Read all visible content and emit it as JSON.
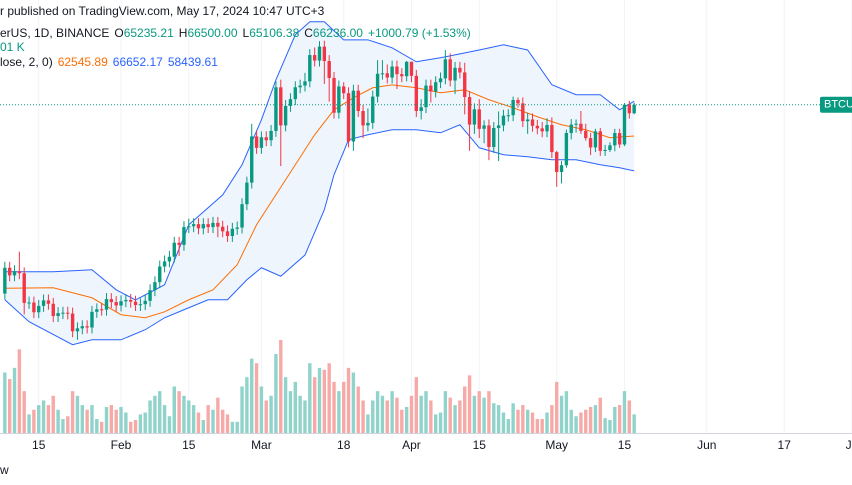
{
  "header": {
    "publish": "r published on TradingView.com, May 17, 2024 10:47 UTC+3",
    "symbol": "erUS, 1D, BINANCE",
    "ohlc": [
      {
        "k": "O",
        "v": "65235.21"
      },
      {
        "k": "H",
        "v": "66500.00"
      },
      {
        "k": "L",
        "v": "65106.38"
      },
      {
        "k": "C",
        "v": "66236.00"
      }
    ],
    "change": "+1000.79 (+1.53%)",
    "volume": "01 K",
    "bb": "lose, 2, 0)",
    "bb_values": [
      "62545.89",
      "66652.17",
      "58439.61"
    ]
  },
  "footer": "w",
  "chart_data": {
    "type": "candlestick",
    "price_label": "BTCUS",
    "up_color": "#089981",
    "down_color": "#f23645",
    "volume_up_color": "#8fd3cb",
    "volume_down_color": "#f7a9a7",
    "grid": true,
    "xlim": [
      -1,
      175
    ],
    "ylim": [
      27500,
      78600
    ],
    "volume_ylim": [
      0,
      100
    ],
    "xticks": [
      {
        "value": 7,
        "label": "15"
      },
      {
        "value": 24,
        "label": "Feb"
      },
      {
        "value": 38,
        "label": "15"
      },
      {
        "value": 53,
        "label": "Mar"
      },
      {
        "value": 70,
        "label": "18"
      },
      {
        "value": 84,
        "label": "Apr"
      },
      {
        "value": 98,
        "label": "15"
      },
      {
        "value": 114,
        "label": "May"
      },
      {
        "value": 128,
        "label": "15"
      },
      {
        "value": 145,
        "label": "Jun"
      },
      {
        "value": 161,
        "label": "17"
      },
      {
        "value": 175,
        "label": "Ju"
      }
    ],
    "open": [
      43950,
      47000,
      46100,
      46600,
      46350,
      42850,
      42900,
      41750,
      42500,
      43150,
      42750,
      41300,
      41650,
      41700,
      41600,
      39500,
      39850,
      40100,
      39950,
      41800,
      42100,
      42050,
      43300,
      42950,
      42550,
      43050,
      43200,
      43000,
      42600,
      42700,
      43100,
      44350,
      45300,
      47150,
      47750,
      48300,
      49950,
      49700,
      51800,
      51900,
      52150,
      51650,
      52150,
      51800,
      52300,
      51850,
      51300,
      50750,
      51600,
      51750,
      54500,
      57050,
      62500,
      61150,
      62400,
      62050,
      63150,
      68300,
      63800,
      66100,
      66900,
      68300,
      68500,
      69000,
      72100,
      71450,
      73100,
      71400,
      69400,
      65300,
      68400,
      67600,
      61900,
      67900,
      65500,
      63800,
      64100,
      67200,
      69900,
      69950,
      69450,
      70750,
      69850,
      69600,
      71300,
      69650,
      65500,
      65950,
      68500,
      67800,
      68900,
      69350,
      71600,
      69100,
      70600,
      70050,
      67150,
      63900,
      65700,
      63400,
      63800,
      61250,
      63500,
      63800,
      64950,
      65000,
      66800,
      66400,
      64300,
      64500,
      63750,
      63450,
      63100,
      63850,
      60650,
      58300,
      59100,
      62900,
      63900,
      64000,
      63150,
      62300,
      61200,
      63100,
      60800,
      60900,
      61450,
      62900,
      61550,
      66250,
      65235.21
    ],
    "high": [
      47700,
      47700,
      47300,
      48900,
      47050,
      43600,
      43600,
      43200,
      43850,
      43850,
      43450,
      42350,
      42400,
      42400,
      42300,
      40550,
      40800,
      40800,
      42500,
      42800,
      42800,
      44000,
      44000,
      43650,
      43750,
      43900,
      43900,
      43700,
      43400,
      43800,
      45050,
      46000,
      47850,
      48450,
      49000,
      50650,
      50650,
      52500,
      52800,
      52850,
      52850,
      52850,
      52850,
      53000,
      53000,
      52550,
      52000,
      52300,
      52450,
      55200,
      57750,
      64000,
      63200,
      63100,
      63100,
      63850,
      69000,
      69200,
      66800,
      67600,
      69000,
      69200,
      70000,
      72800,
      73000,
      73750,
      73800,
      72100,
      70100,
      69100,
      68900,
      68300,
      68600,
      68600,
      66200,
      65800,
      67900,
      71500,
      71500,
      71000,
      71450,
      71450,
      70550,
      71400,
      71350,
      70350,
      66900,
      69200,
      69200,
      69600,
      70050,
      72700,
      72300,
      71300,
      71300,
      71200,
      67850,
      66400,
      66900,
      64400,
      64500,
      64200,
      65450,
      65650,
      65700,
      67200,
      67100,
      67100,
      65300,
      65200,
      64450,
      64200,
      64650,
      64750,
      60800,
      59600,
      63300,
      64550,
      64500,
      65500,
      64000,
      62900,
      63400,
      63500,
      61500,
      61800,
      63400,
      63400,
      66450,
      66700,
      66500
    ],
    "low": [
      43250,
      45400,
      45400,
      45650,
      41500,
      42150,
      41050,
      41050,
      41800,
      42050,
      40600,
      40600,
      40950,
      40900,
      38800,
      38500,
      39150,
      39250,
      39250,
      41100,
      41350,
      41350,
      42250,
      41850,
      41850,
      42350,
      42300,
      41900,
      41900,
      42000,
      42400,
      43650,
      44600,
      46450,
      47050,
      47600,
      48400,
      49000,
      51100,
      51200,
      50950,
      50950,
      51100,
      51100,
      50600,
      50600,
      50050,
      50050,
      50900,
      51050,
      53800,
      56350,
      60450,
      60450,
      61350,
      61350,
      62450,
      59000,
      63100,
      65400,
      66200,
      67600,
      67800,
      68300,
      70750,
      70750,
      68700,
      66600,
      64600,
      64600,
      66900,
      61200,
      60800,
      64800,
      62300,
      63100,
      63400,
      66500,
      69200,
      68750,
      68750,
      68100,
      68900,
      69000,
      68900,
      64800,
      64500,
      65250,
      66500,
      67100,
      68200,
      68650,
      68400,
      67500,
      69350,
      65100,
      60800,
      62800,
      62300,
      61700,
      59700,
      60550,
      59600,
      63100,
      64250,
      64300,
      65900,
      63600,
      62800,
      63050,
      62750,
      62400,
      62400,
      59950,
      56550,
      56950,
      58800,
      62150,
      62950,
      62800,
      62000,
      60300,
      60650,
      60200,
      60200,
      60650,
      60750,
      61150,
      61350,
      64600,
      65106.38
    ],
    "close": [
      47000,
      46100,
      46600,
      46350,
      42850,
      42900,
      41750,
      42500,
      43150,
      42750,
      41300,
      41650,
      41700,
      41600,
      39500,
      39850,
      40100,
      39950,
      41800,
      42100,
      42050,
      43300,
      42950,
      42550,
      43050,
      43200,
      43000,
      42600,
      42700,
      43100,
      44350,
      45300,
      47150,
      47750,
      48300,
      49950,
      49700,
      51800,
      51900,
      52150,
      51650,
      52150,
      51800,
      52300,
      51850,
      51300,
      50750,
      51600,
      51750,
      54500,
      57050,
      62500,
      61150,
      62400,
      62050,
      63150,
      68300,
      63800,
      66100,
      66900,
      68300,
      68500,
      69000,
      72100,
      71450,
      73100,
      71400,
      69400,
      65300,
      68400,
      67600,
      61900,
      67900,
      65500,
      63800,
      64100,
      67200,
      69900,
      69950,
      69450,
      70750,
      69850,
      69600,
      71300,
      69650,
      65500,
      65950,
      68500,
      67800,
      68900,
      69350,
      71600,
      69100,
      70600,
      70050,
      67150,
      63900,
      65700,
      63400,
      63800,
      61250,
      63500,
      63800,
      64950,
      65000,
      66800,
      66400,
      64300,
      64500,
      63750,
      63450,
      63100,
      63850,
      60650,
      58300,
      59100,
      62900,
      63900,
      64000,
      63150,
      62300,
      61200,
      63100,
      60800,
      60900,
      61450,
      62900,
      61550,
      66250,
      65235.21,
      66236
    ],
    "volume": [
      65,
      58,
      70,
      90,
      45,
      20,
      25,
      30,
      35,
      30,
      40,
      25,
      15,
      18,
      45,
      40,
      30,
      25,
      30,
      15,
      12,
      28,
      30,
      25,
      28,
      22,
      12,
      14,
      20,
      22,
      35,
      40,
      45,
      30,
      18,
      50,
      45,
      40,
      35,
      30,
      22,
      14,
      30,
      25,
      38,
      25,
      20,
      12,
      12,
      50,
      60,
      80,
      75,
      50,
      35,
      40,
      85,
      100,
      60,
      45,
      55,
      40,
      35,
      75,
      60,
      70,
      68,
      75,
      55,
      45,
      55,
      70,
      65,
      50,
      35,
      20,
      35,
      45,
      40,
      35,
      45,
      38,
      25,
      28,
      40,
      60,
      40,
      45,
      35,
      20,
      22,
      45,
      38,
      30,
      35,
      50,
      62,
      40,
      45,
      38,
      45,
      32,
      30,
      22,
      15,
      32,
      25,
      30,
      25,
      22,
      15,
      15,
      22,
      30,
      55,
      40,
      45,
      25,
      18,
      22,
      25,
      28,
      30,
      38,
      16,
      14,
      28,
      30,
      45,
      35,
      20
    ],
    "band_fill": "#eef5fd",
    "bands": [
      {
        "color": "#2962ff",
        "x": [
          0,
          10,
          18,
          23,
          27,
          33,
          38,
          45,
          49,
          53,
          56,
          60,
          63,
          66,
          70,
          75,
          80,
          85,
          90,
          93,
          98,
          103,
          108,
          113,
          118,
          123,
          127,
          130
        ],
        "values": [
          46530,
          46530,
          46770,
          44400,
          43200,
          45000,
          52076,
          55600,
          59160,
          64466,
          69186,
          74500,
          76030,
          76030,
          73900,
          73900,
          72960,
          71310,
          71780,
          72130,
          72700,
          73316,
          72700,
          68600,
          67416,
          67416,
          65646,
          66652.17
        ]
      },
      {
        "color": "#ff6d00",
        "x": [
          0,
          10,
          18,
          24,
          29,
          33,
          38,
          43,
          48,
          52,
          56,
          60,
          64,
          68,
          72,
          76,
          80,
          85,
          90,
          95,
          100,
          105,
          110,
          115,
          120,
          125,
          130
        ],
        "values": [
          44586,
          44640,
          43460,
          41456,
          41100,
          41800,
          43226,
          44400,
          47356,
          52076,
          55616,
          59156,
          62696,
          65646,
          67062,
          68240,
          68590,
          68240,
          67650,
          68000,
          66826,
          65882,
          64820,
          63876,
          63286,
          62342,
          62545.89
        ]
      },
      {
        "color": "#2962ff",
        "x": [
          0,
          5,
          14,
          18,
          24,
          29,
          33,
          37,
          42,
          46,
          50,
          53,
          57,
          62,
          66,
          68,
          71,
          75,
          80,
          85,
          90,
          94,
          98,
          103,
          108,
          113,
          118,
          123,
          127,
          130
        ],
        "values": [
          43226,
          40630,
          37916,
          38500,
          38500,
          39686,
          41100,
          42046,
          43226,
          43226,
          45586,
          47000,
          46000,
          48500,
          53846,
          57976,
          62100,
          62700,
          63286,
          63286,
          62930,
          63876,
          61160,
          60336,
          60100,
          59746,
          59746,
          59156,
          58800,
          58439.61
        ]
      }
    ]
  }
}
